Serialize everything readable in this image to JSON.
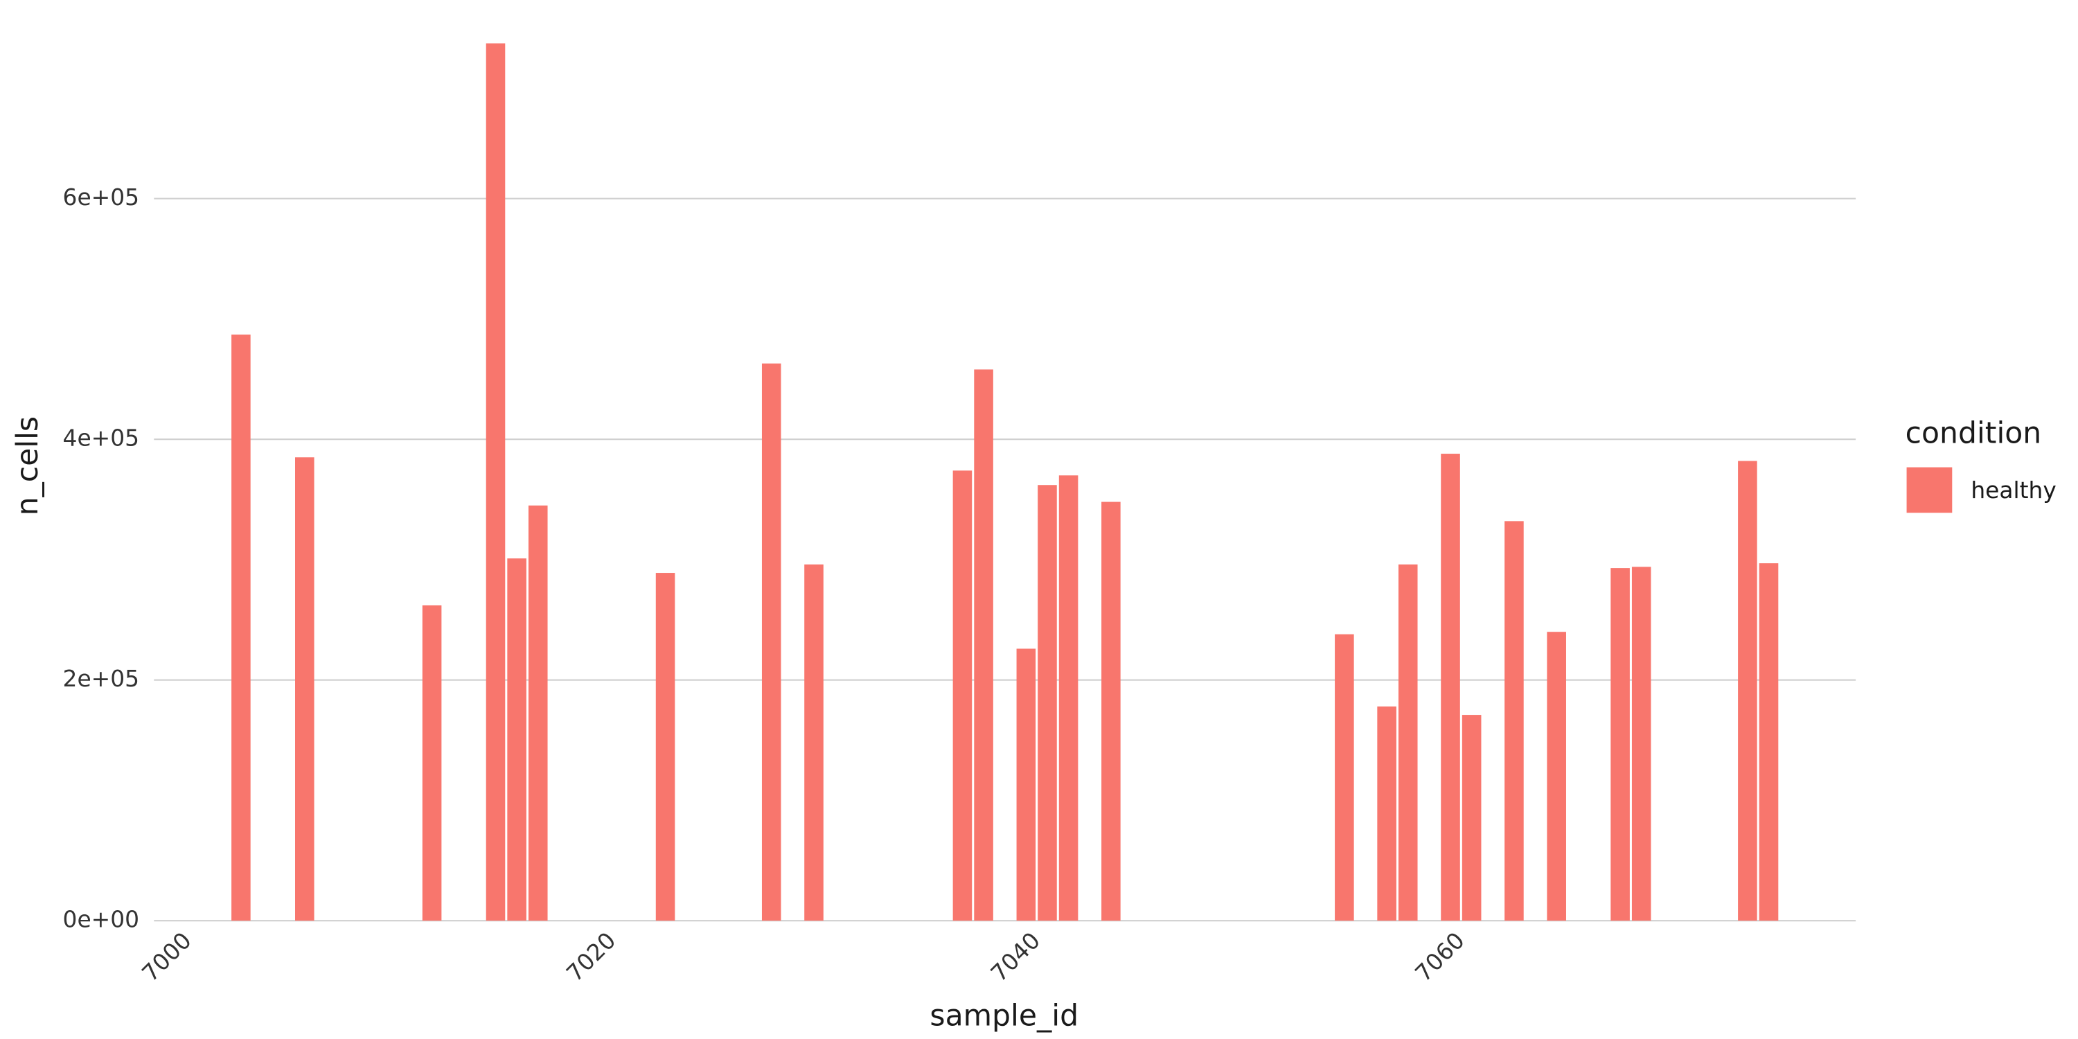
{
  "chart_data": {
    "type": "bar",
    "x_label": "sample_id",
    "y_label": "n_cells",
    "legend_title": "condition",
    "x": [
      7003,
      7006,
      7012,
      7015,
      7016,
      7017,
      7023,
      7028,
      7030,
      7037,
      7038,
      7040,
      7041,
      7042,
      7044,
      7055,
      7057,
      7058,
      7060,
      7061,
      7063,
      7065,
      7068,
      7069,
      7074,
      7075
    ],
    "series": [
      {
        "name": "healthy",
        "color": "#f8766d",
        "values": [
          487000,
          385000,
          262000,
          729000,
          301000,
          345000,
          289000,
          463000,
          296000,
          374000,
          458000,
          226000,
          362000,
          370000,
          348000,
          238000,
          178000,
          296000,
          388000,
          171000,
          332000,
          240000,
          293000,
          294000,
          382000,
          297000
        ]
      }
    ],
    "xlim": [
      6998.9,
      7079.1
    ],
    "xticks": [
      7000,
      7020,
      7040,
      7060
    ],
    "ylim": [
      -36000,
      765000
    ],
    "yticks": [
      {
        "value": 0,
        "label": "0e+00"
      },
      {
        "value": 200000,
        "label": "2e+05"
      },
      {
        "value": 400000,
        "label": "4e+05"
      },
      {
        "value": 600000,
        "label": "6e+05"
      }
    ],
    "grid": true
  }
}
